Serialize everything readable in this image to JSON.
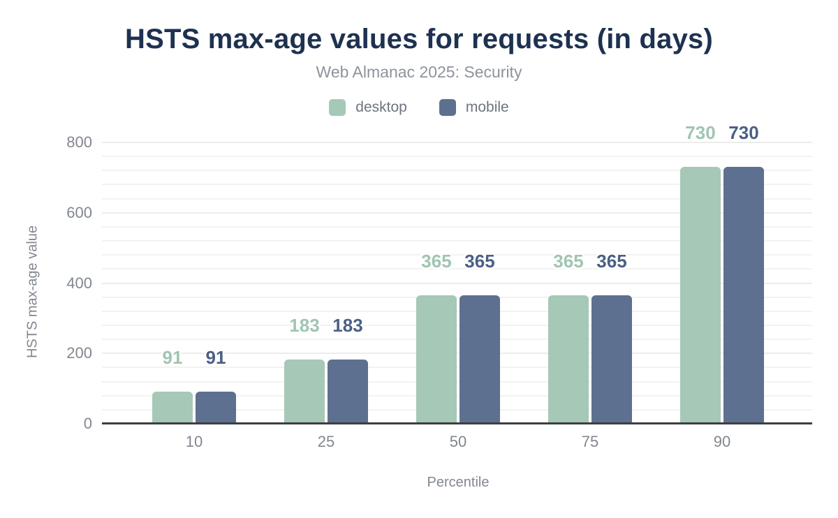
{
  "chart_data": {
    "type": "bar",
    "title": "HSTS max-age values for requests (in days)",
    "subtitle": "Web Almanac 2025: Security",
    "categories": [
      "10",
      "25",
      "50",
      "75",
      "90"
    ],
    "series": [
      {
        "name": "desktop",
        "color": "#a6c8b7",
        "label_color": "#a0c5b1",
        "values": [
          91,
          183,
          365,
          365,
          730
        ]
      },
      {
        "name": "mobile",
        "color": "#5e7090",
        "label_color": "#4b6083",
        "values": [
          91,
          183,
          365,
          365,
          730
        ]
      }
    ],
    "xlabel": "Percentile",
    "ylabel": "HSTS max-age value",
    "ylim": [
      0,
      800
    ],
    "yticks": [
      0,
      200,
      400,
      600,
      800
    ],
    "minor_grid_step": 40,
    "grid": "on",
    "legend_position": "top"
  },
  "colors": {
    "title_text": "#1e3151",
    "muted_text": "#8e939c",
    "tick_text": "#82878f",
    "legend_text": "#6e747e",
    "gridline": "#f2f2f2",
    "major_gridline": "#ececec",
    "axis_line": "#3d3f42",
    "background": "#ffffff"
  }
}
